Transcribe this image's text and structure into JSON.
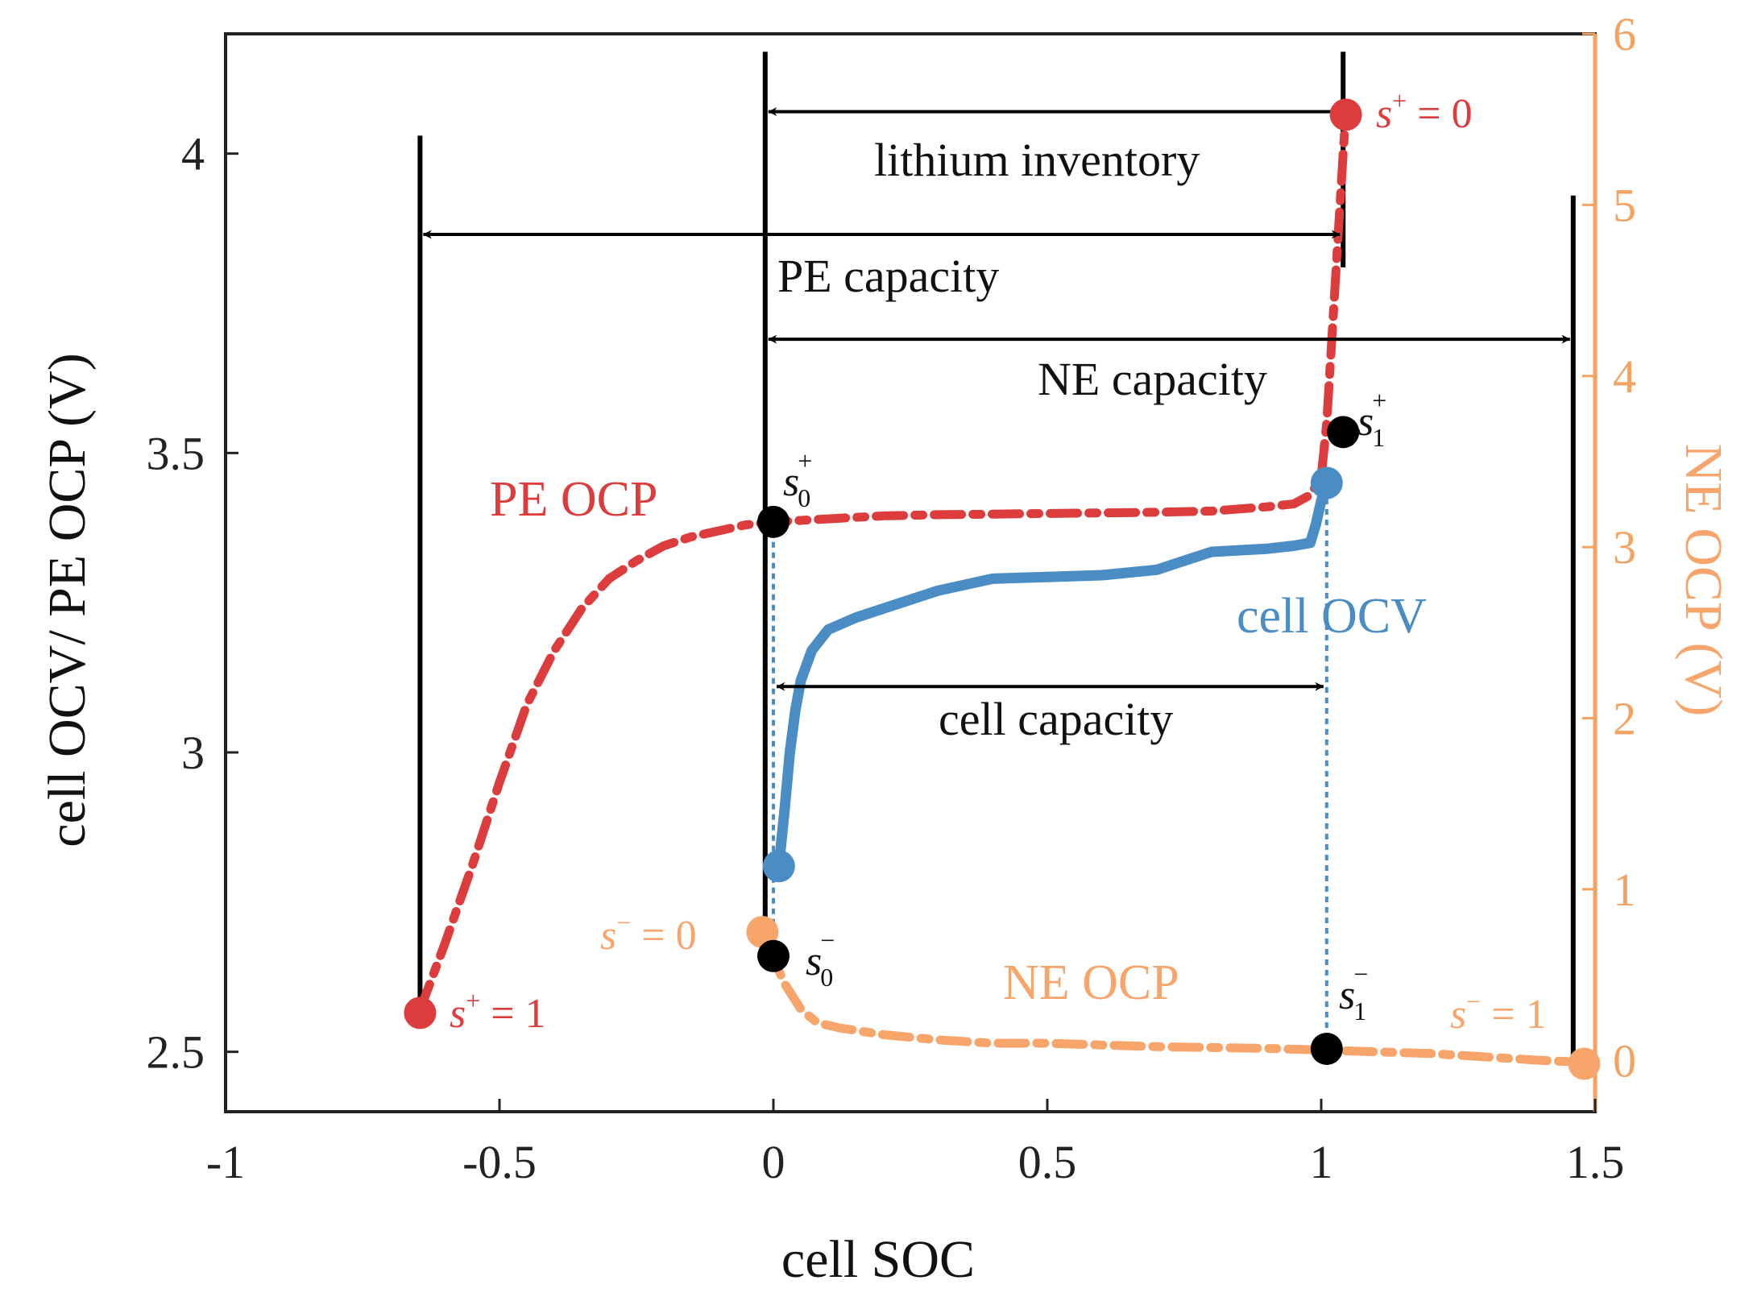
{
  "chart_data": {
    "type": "line",
    "xlabel": "cell SOC",
    "ylabel": "cell OCV/ PE OCP (V)",
    "y2label": "NE OCP (V)",
    "xlim": [
      -1,
      1.5
    ],
    "ylim": [
      2.4,
      4.2
    ],
    "y2lim": [
      -0.3,
      6.0
    ],
    "xticks": [
      "-1",
      "-0.5",
      "0",
      "0.5",
      "1",
      "1.5"
    ],
    "xtick_values": [
      -1,
      -0.5,
      0,
      0.5,
      1,
      1.5
    ],
    "yticks": [
      "2.5",
      "3",
      "3.5",
      "4"
    ],
    "ytick_values": [
      2.5,
      3,
      3.5,
      4
    ],
    "y2ticks": [
      "0",
      "1",
      "2",
      "3",
      "4",
      "5",
      "6"
    ],
    "y2tick_values": [
      0,
      1,
      2,
      3,
      4,
      5,
      6
    ],
    "colors": {
      "pe": "#dc3c3c",
      "ne": "#f7a56b",
      "cell": "#4a8cc4",
      "axis_right": "#f4a261",
      "black": "#000000"
    },
    "series": [
      {
        "name": "PE OCP",
        "axis": "left",
        "style": "dashdot",
        "x": [
          -0.645,
          -0.6,
          -0.55,
          -0.5,
          -0.45,
          -0.4,
          -0.35,
          -0.3,
          -0.25,
          -0.2,
          -0.15,
          -0.1,
          -0.05,
          0.0,
          0.1,
          0.2,
          0.3,
          0.4,
          0.5,
          0.6,
          0.7,
          0.8,
          0.9,
          0.95,
          0.98,
          1.0,
          1.01,
          1.02,
          1.03,
          1.04,
          1.045
        ],
        "y": [
          2.57,
          2.68,
          2.81,
          2.95,
          3.08,
          3.17,
          3.24,
          3.29,
          3.32,
          3.345,
          3.36,
          3.37,
          3.38,
          3.385,
          3.39,
          3.395,
          3.397,
          3.398,
          3.399,
          3.4,
          3.401,
          3.403,
          3.41,
          3.415,
          3.43,
          3.46,
          3.55,
          3.7,
          3.85,
          4.0,
          4.07
        ]
      },
      {
        "name": "NE OCP",
        "axis": "right",
        "style": "dashdot",
        "x": [
          -0.02,
          0.0,
          0.02,
          0.05,
          0.08,
          0.12,
          0.2,
          0.3,
          0.4,
          0.5,
          0.6,
          0.7,
          0.8,
          0.9,
          1.0,
          1.1,
          1.2,
          1.3,
          1.4,
          1.47
        ],
        "y": [
          0.75,
          0.6,
          0.45,
          0.3,
          0.22,
          0.19,
          0.15,
          0.12,
          0.1,
          0.1,
          0.09,
          0.08,
          0.075,
          0.07,
          0.06,
          0.05,
          0.04,
          0.02,
          0.0,
          -0.01
        ]
      },
      {
        "name": "cell OCV",
        "axis": "left",
        "style": "solid",
        "x": [
          0.01,
          0.02,
          0.03,
          0.04,
          0.05,
          0.07,
          0.1,
          0.15,
          0.2,
          0.3,
          0.4,
          0.5,
          0.6,
          0.7,
          0.75,
          0.8,
          0.9,
          0.95,
          0.98,
          0.99,
          1.0,
          1.01
        ],
        "y": [
          2.81,
          2.9,
          3.0,
          3.07,
          3.12,
          3.17,
          3.205,
          3.225,
          3.24,
          3.27,
          3.29,
          3.293,
          3.296,
          3.305,
          3.32,
          3.335,
          3.34,
          3.345,
          3.35,
          3.38,
          3.42,
          3.45
        ]
      }
    ],
    "markers": [
      {
        "name": "pe-end",
        "x": -0.645,
        "y": 2.565,
        "axis": "left",
        "color": "pe"
      },
      {
        "name": "pe-start",
        "x": 1.045,
        "y": 4.065,
        "axis": "left",
        "color": "pe"
      },
      {
        "name": "ne-start",
        "x": -0.02,
        "y": 0.75,
        "axis": "right",
        "color": "ne"
      },
      {
        "name": "ne-end",
        "x": 1.48,
        "y": -0.02,
        "axis": "right",
        "color": "ne"
      },
      {
        "name": "cell-start",
        "x": 0.01,
        "y": 2.81,
        "axis": "left",
        "color": "cell"
      },
      {
        "name": "cell-end",
        "x": 1.01,
        "y": 3.45,
        "axis": "left",
        "color": "cell"
      },
      {
        "name": "s0-plus",
        "x": 0.0,
        "y": 3.385,
        "axis": "left",
        "color": "black"
      },
      {
        "name": "s1-plus",
        "x": 1.04,
        "y": 3.535,
        "axis": "left",
        "color": "black"
      },
      {
        "name": "s0-minus",
        "x": 0.0,
        "y": 2.66,
        "axis": "left",
        "color": "black"
      },
      {
        "name": "s1-minus",
        "x": 1.01,
        "y": 2.505,
        "axis": "left",
        "color": "black"
      }
    ],
    "vertical_lines": [
      {
        "name": "pe-lower-bound",
        "x": -0.645,
        "y_from": 2.57,
        "y_to": 4.03
      },
      {
        "name": "cell-zero-bound",
        "x": -0.015,
        "y_from": 2.64,
        "y_to": 4.17
      },
      {
        "name": "pe-upper-bound",
        "x": 1.04,
        "y_from": 3.81,
        "y_to": 4.17
      },
      {
        "name": "ne-upper-bound",
        "x": 1.46,
        "y_from": 2.49,
        "y_to": 3.93
      }
    ],
    "dotted_lines": [
      {
        "name": "s0-dotted",
        "x": 0.0,
        "y_from": 2.66,
        "y_to": 3.385
      },
      {
        "name": "s1-dotted",
        "x": 1.01,
        "y_from": 2.505,
        "y_to": 3.45
      }
    ],
    "arrows": [
      {
        "name": "lithium-inventory",
        "x1": -0.015,
        "x2": 1.04,
        "y": 4.07
      },
      {
        "name": "pe-capacity",
        "x1": -0.645,
        "x2": 1.04,
        "y": 3.865
      },
      {
        "name": "ne-capacity",
        "x1": -0.015,
        "x2": 1.46,
        "y": 3.69
      },
      {
        "name": "cell-capacity",
        "x1": 0.0,
        "x2": 1.01,
        "y": 3.11
      }
    ],
    "annotations": {
      "lithium_inventory": "lithium inventory",
      "pe_capacity": "PE capacity",
      "ne_capacity": "NE capacity",
      "cell_capacity": "cell capacity",
      "pe_ocp": "PE OCP",
      "ne_ocp": "NE OCP",
      "cell_ocv": "cell OCV",
      "s_plus_0_base": "s",
      "s_plus_0_sup": "+",
      "s_plus_0_eq": " = 0",
      "s_plus_1_base": "s",
      "s_plus_1_sup": "+",
      "s_plus_1_eq": " = 1",
      "s_minus_0_base": "s",
      "s_minus_0_sup": "−",
      "s_minus_0_eq": " = 0",
      "s_minus_1_base": "s",
      "s_minus_1_sup": "−",
      "s_minus_1_eq": " = 1",
      "s0p_base": "s",
      "s0p_sup": "+",
      "s0p_sub": "0",
      "s1p_base": "s",
      "s1p_sup": "+",
      "s1p_sub": "1",
      "s0m_base": "s",
      "s0m_sup": "−",
      "s0m_sub": "0",
      "s1m_base": "s",
      "s1m_sup": "−",
      "s1m_sub": "1"
    }
  }
}
